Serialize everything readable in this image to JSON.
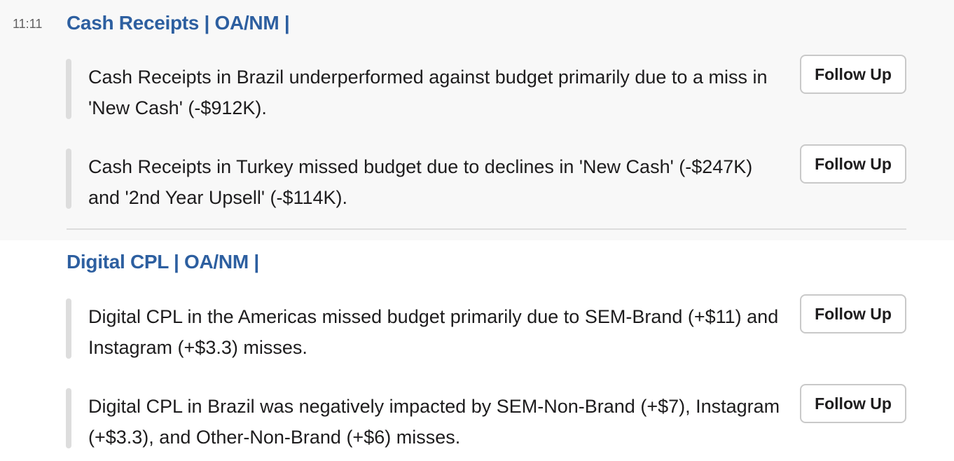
{
  "messages": [
    {
      "timestamp": "11:11",
      "title": "Cash Receipts | OA/NM |",
      "items": [
        {
          "text": "Cash Receipts in Brazil underperformed against budget primarily due to a miss in 'New Cash' (-$912K).",
          "button": "Follow Up"
        },
        {
          "text": "Cash Receipts in Turkey missed budget due to declines in 'New Cash' (-$247K) and '2nd Year Upsell' (-$114K).",
          "button": "Follow Up"
        }
      ]
    },
    {
      "title": "Digital CPL | OA/NM |",
      "items": [
        {
          "text": "Digital CPL in the Americas missed budget primarily due to SEM-Brand (+$11) and Instagram (+$3.3) misses.",
          "button": "Follow Up"
        },
        {
          "text": "Digital CPL in Brazil was negatively impacted by SEM-Non-Brand (+$7), Instagram (+$3.3), and Other-Non-Brand (+$6) misses.",
          "button": "Follow Up"
        }
      ]
    }
  ]
}
